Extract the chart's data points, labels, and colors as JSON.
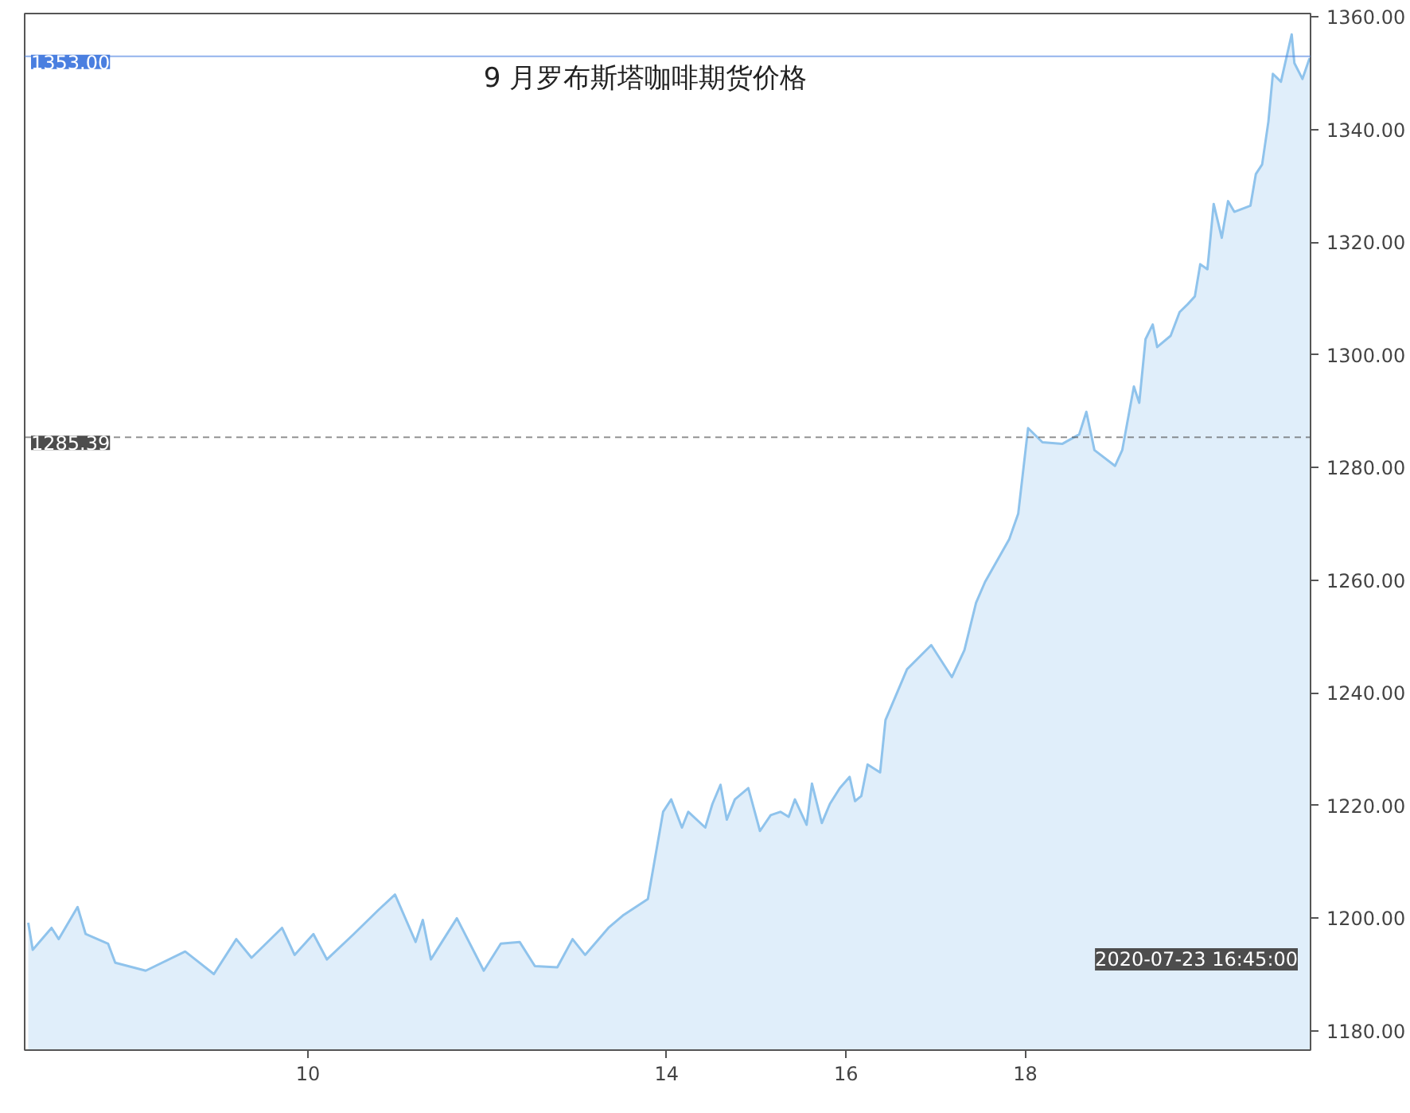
{
  "chart_data": {
    "type": "area",
    "title": "9 月罗布斯塔咖啡期货价格",
    "x": [
      6.88,
      6.93,
      7.14,
      7.22,
      7.43,
      7.52,
      7.77,
      7.85,
      8.19,
      8.63,
      8.95,
      9.2,
      9.37,
      9.71,
      9.85,
      10.06,
      10.21,
      10.51,
      10.78,
      10.97,
      11.2,
      11.28,
      11.37,
      11.66,
      11.96,
      12.15,
      12.36,
      12.53,
      12.78,
      12.95,
      13.09,
      13.35,
      13.52,
      13.79,
      13.96,
      14.05,
      14.17,
      14.24,
      14.43,
      14.51,
      14.6,
      14.67,
      14.76,
      14.91,
      15.04,
      15.16,
      15.27,
      15.36,
      15.43,
      15.56,
      15.62,
      15.73,
      15.82,
      15.93,
      16.04,
      16.1,
      16.17,
      16.24,
      16.38,
      16.44,
      16.68,
      16.95,
      17.18,
      17.32,
      17.45,
      17.55,
      17.82,
      17.92,
      18.03,
      18.19,
      18.41,
      18.6,
      18.68,
      18.77,
      19.0,
      19.08,
      19.21,
      19.27,
      19.34,
      19.42,
      19.47,
      19.62,
      19.72,
      19.81,
      19.89,
      19.95,
      20.03,
      20.1,
      20.19,
      20.26,
      20.33,
      20.51,
      20.57,
      20.64,
      20.71,
      20.76,
      20.85,
      20.97,
      21.0,
      21.09,
      21.17
    ],
    "values": [
      1199.2,
      1194.4,
      1198.3,
      1196.3,
      1202,
      1197.2,
      1195.5,
      1192.1,
      1190.7,
      1194.1,
      1190.1,
      1196.3,
      1193,
      1198.3,
      1193.5,
      1197.2,
      1192.7,
      1197.2,
      1201.4,
      1204.2,
      1195.8,
      1199.7,
      1192.7,
      1200,
      1190.7,
      1195.5,
      1195.8,
      1191.5,
      1191.3,
      1196.3,
      1193.5,
      1198.3,
      1200.6,
      1203.4,
      1218.9,
      1221.1,
      1216.1,
      1218.9,
      1216.1,
      1220.3,
      1223.7,
      1217.5,
      1221.1,
      1223.1,
      1215.5,
      1218.3,
      1218.9,
      1218,
      1221.1,
      1216.6,
      1223.9,
      1216.9,
      1220.3,
      1223.1,
      1225.1,
      1220.8,
      1221.7,
      1227.3,
      1225.9,
      1235.2,
      1244.2,
      1248.5,
      1242.8,
      1247.6,
      1256,
      1259.7,
      1267.3,
      1271.8,
      1287,
      1284.5,
      1284.2,
      1285.9,
      1289.9,
      1283.1,
      1280.3,
      1283.1,
      1294.4,
      1291.5,
      1302.8,
      1305.4,
      1301.4,
      1303.4,
      1307.6,
      1309,
      1310.4,
      1316.1,
      1315.2,
      1326.8,
      1320.8,
      1327.3,
      1325.4,
      1326.5,
      1332.1,
      1333.8,
      1341.4,
      1349.9,
      1348.5,
      1356.9,
      1351.8,
      1349,
      1352.7
    ],
    "color": "#8fc3ec",
    "xlim": [
      6.84,
      21.18
    ],
    "xticks": [
      10,
      14,
      16,
      18
    ],
    "ylim": [
      1176.6,
      1360.6
    ],
    "yticks": [
      {
        "value": 1180,
        "label": "1180.00"
      },
      {
        "value": 1200,
        "label": "1200.00"
      },
      {
        "value": 1220,
        "label": "1220.00"
      },
      {
        "value": 1240,
        "label": "1240.00"
      },
      {
        "value": 1260,
        "label": "1260.00"
      },
      {
        "value": 1280,
        "label": "1280.00"
      },
      {
        "value": 1300,
        "label": "1300.00"
      },
      {
        "value": 1320,
        "label": "1320.00"
      },
      {
        "value": 1340,
        "label": "1340.00"
      },
      {
        "value": 1360,
        "label": "1360.00"
      }
    ],
    "ref_lines": [
      {
        "axis": "y",
        "value": 1353,
        "label": "1353.00",
        "color": "#4a7fe0",
        "line_style": "solid"
      },
      {
        "axis": "y",
        "value": 1285.39,
        "label": "1285.39",
        "color": "#4d4d4d",
        "line_style": "dashed"
      }
    ],
    "annotations": [
      "2020-07-23 16:45:00"
    ],
    "grid": false
  }
}
